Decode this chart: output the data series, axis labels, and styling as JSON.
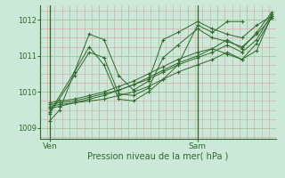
{
  "bg_color": "#cce8d8",
  "plot_bg_color": "#cce8d8",
  "line_color": "#2d6a2d",
  "grid_major_color": "#aacca8",
  "grid_minor_v_color": "#d8a0a0",
  "grid_minor_h_color": "#d8a0a0",
  "xlabel": "Pression niveau de la mer( hPa )",
  "yticks": [
    1009,
    1010,
    1011,
    1012
  ],
  "ylim": [
    1008.7,
    1012.4
  ],
  "xlim": [
    0,
    48
  ],
  "ven_x": 2,
  "sam_x": 32,
  "series": [
    [
      2,
      1009.2,
      4,
      1009.5,
      7,
      1010.55,
      10,
      1011.25,
      13,
      1010.75,
      16,
      1009.8,
      19,
      1009.75,
      22,
      1010.0,
      25,
      1010.35,
      28,
      1010.75,
      32,
      1011.85,
      35,
      1011.65,
      38,
      1011.95,
      41,
      1011.95
    ],
    [
      2,
      1009.55,
      4,
      1009.6,
      7,
      1009.7,
      10,
      1009.8,
      13,
      1009.9,
      16,
      1010.05,
      19,
      1010.2,
      22,
      1010.4,
      25,
      1010.6,
      28,
      1010.8,
      32,
      1011.0,
      35,
      1011.2,
      38,
      1011.05,
      41,
      1010.9,
      44,
      1011.35,
      47,
      1012.05
    ],
    [
      2,
      1009.6,
      4,
      1009.65,
      7,
      1009.7,
      10,
      1009.75,
      13,
      1009.8,
      16,
      1009.9,
      19,
      1010.0,
      22,
      1010.15,
      25,
      1010.35,
      28,
      1010.55,
      32,
      1010.75,
      35,
      1010.9,
      38,
      1011.1,
      41,
      1010.9,
      44,
      1011.15,
      47,
      1012.1
    ],
    [
      2,
      1009.65,
      4,
      1009.7,
      7,
      1009.75,
      10,
      1009.85,
      13,
      1009.95,
      16,
      1010.05,
      19,
      1010.2,
      22,
      1010.35,
      25,
      1010.55,
      28,
      1010.75,
      32,
      1010.95,
      35,
      1011.1,
      38,
      1011.3,
      41,
      1011.1,
      44,
      1011.45,
      47,
      1012.15
    ],
    [
      2,
      1009.7,
      4,
      1009.75,
      7,
      1009.8,
      10,
      1009.9,
      13,
      1010.0,
      16,
      1010.15,
      19,
      1010.3,
      22,
      1010.5,
      25,
      1010.7,
      28,
      1010.9,
      32,
      1011.1,
      35,
      1011.2,
      38,
      1011.45,
      41,
      1011.2,
      44,
      1011.65,
      47,
      1012.2
    ],
    [
      2,
      1009.45,
      7,
      1010.55,
      10,
      1011.6,
      13,
      1011.45,
      16,
      1010.45,
      19,
      1010.05,
      22,
      1010.3,
      25,
      1011.45,
      28,
      1011.65,
      32,
      1011.95,
      35,
      1011.75,
      38,
      1011.6,
      41,
      1011.5,
      44,
      1011.85,
      47,
      1012.1
    ],
    [
      2,
      1009.4,
      7,
      1010.45,
      10,
      1011.1,
      13,
      1010.95,
      16,
      1009.95,
      19,
      1009.9,
      22,
      1010.1,
      25,
      1010.95,
      28,
      1011.3,
      32,
      1011.75,
      35,
      1011.5,
      38,
      1011.4,
      41,
      1011.25,
      44,
      1011.6,
      47,
      1012.05
    ]
  ]
}
